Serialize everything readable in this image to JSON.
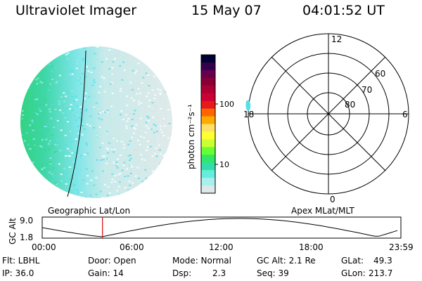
{
  "header": {
    "title": "Ultraviolet Imager",
    "date": "15 May 07",
    "time": "04:01:52 UT"
  },
  "colorbar": {
    "unit_label": "photon cm⁻²s⁻¹",
    "ticks": [
      "100",
      "10"
    ],
    "colors": [
      "#000033",
      "#33004d",
      "#66004d",
      "#880033",
      "#aa0033",
      "#cc0033",
      "#e61a1a",
      "#ff6600",
      "#ffaa00",
      "#ffe066",
      "#ffff33",
      "#ccff33",
      "#66ff33",
      "#33e666",
      "#33ddaa",
      "#66eedd",
      "#aaeeee",
      "#dde8e8"
    ]
  },
  "polar": {
    "mlt_labels": [
      "12",
      "6",
      "0",
      "18"
    ],
    "lat_labels": [
      "60",
      "70",
      "80"
    ]
  },
  "orbit": {
    "left_label": "Geographic Lat/Lon",
    "right_label": "Apex MLat/MLT",
    "y_axis_label": "GC Alt",
    "y_ticks": [
      "9.0",
      "1.8"
    ],
    "x_ticks": [
      "00:00",
      "06:00",
      "12:00",
      "18:00",
      "23:59"
    ],
    "marker_time": "04:01:52"
  },
  "status": {
    "flt": "Flt: LBHL",
    "ip": "IP: 36.0",
    "door": "Door: Open",
    "gain": "Gain: 14",
    "mode": "Mode: Normal",
    "dsp_label": "Dsp:",
    "dsp_value": "2.3",
    "gc_alt": "GC Alt: 2.1 Re",
    "seq": "Seq: 39",
    "glat_label": "GLat:",
    "glat_value": "49.3",
    "glon_label": "GLon:",
    "glon_value": "213.7"
  },
  "colors": {
    "marker": "#e00000",
    "image_green": "#33dd77",
    "image_cyan": "#55e0e8",
    "image_pale": "#d6e4e4"
  }
}
